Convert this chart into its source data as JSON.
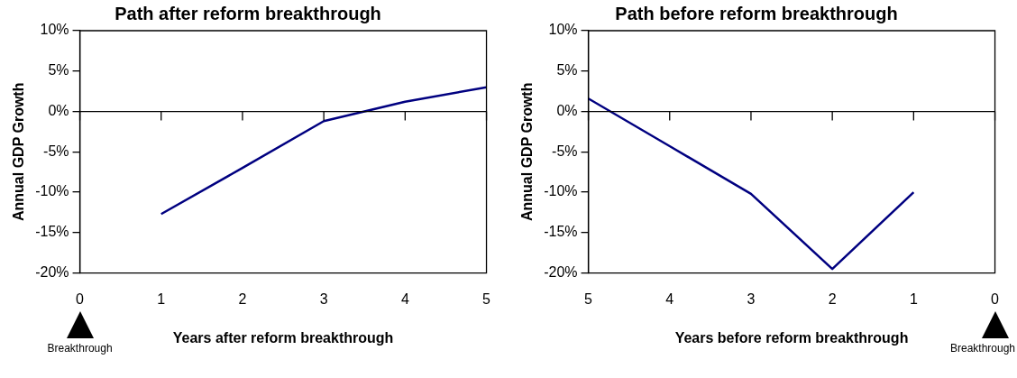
{
  "chart_data": [
    {
      "type": "line",
      "title": "Path after reform breakthrough",
      "xlabel": "Years after reform breakthrough",
      "ylabel": "Annual GDP Growth",
      "x": [
        1,
        2,
        3,
        4,
        5
      ],
      "series": [
        {
          "color": "#000080",
          "values": [
            -12.7,
            -7.0,
            -1.2,
            1.2,
            3.0
          ]
        }
      ],
      "xlim": [
        0,
        5
      ],
      "xticks": [
        0,
        1,
        2,
        3,
        4,
        5
      ],
      "ylim": [
        -20,
        10
      ],
      "yticks": [
        {
          "value": -20,
          "label": "-20%"
        },
        {
          "value": -15,
          "label": "-15%"
        },
        {
          "value": -10,
          "label": "-10%"
        },
        {
          "value": -5,
          "label": "-5%"
        },
        {
          "value": 0,
          "label": "0%"
        },
        {
          "value": 5,
          "label": "5%"
        },
        {
          "value": 10,
          "label": "10%"
        }
      ],
      "annotations": [
        "Breakthrough"
      ]
    },
    {
      "type": "line",
      "title": "Path before reform breakthrough",
      "xlabel": "Years before reform breakthrough",
      "ylabel": "Annual GDP Growth",
      "x": [
        5,
        4,
        3,
        2,
        1
      ],
      "series": [
        {
          "color": "#000080",
          "values": [
            1.6,
            -4.3,
            -10.2,
            -19.5,
            -10.0
          ]
        }
      ],
      "xlim": [
        5,
        0
      ],
      "xticks": [
        5,
        4,
        3,
        2,
        1,
        0
      ],
      "ylim": [
        -20,
        10
      ],
      "yticks": [
        {
          "value": -20,
          "label": "-20%"
        },
        {
          "value": -15,
          "label": "-15%"
        },
        {
          "value": -10,
          "label": "-10%"
        },
        {
          "value": -5,
          "label": "-5%"
        },
        {
          "value": 0,
          "label": "0%"
        },
        {
          "value": 5,
          "label": "5%"
        },
        {
          "value": 10,
          "label": "10%"
        }
      ],
      "annotations": [
        "Breakthrough"
      ]
    }
  ]
}
